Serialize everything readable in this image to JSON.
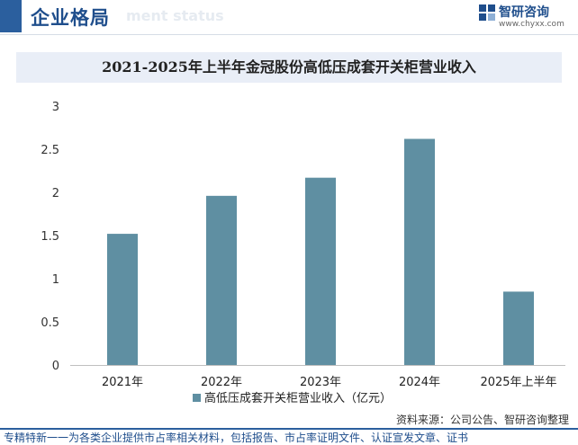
{
  "header": {
    "section_title": "企业格局",
    "section_subtitle": "ment status",
    "brand_name": "智研咨询",
    "brand_url": "www.chyxx.com"
  },
  "chart_data": {
    "type": "bar",
    "title": "2021-2025年上半年金冠股份高低压成套开关柜营业收入",
    "categories": [
      "2021年",
      "2022年",
      "2023年",
      "2024年",
      "2025年上半年"
    ],
    "series": [
      {
        "name": "高低压成套开关柜营业收入（亿元）",
        "values": [
          1.52,
          1.96,
          2.17,
          2.62,
          0.85
        ]
      }
    ],
    "ylim": [
      0,
      3
    ],
    "yticks": [
      "0",
      "0.5",
      "1",
      "1.5",
      "2",
      "2.5",
      "3"
    ],
    "ytick_values": [
      0,
      0.5,
      1,
      1.5,
      2,
      2.5,
      3
    ],
    "legend_position": "bottom",
    "grid": false,
    "bar_color": "#5f8fa2"
  },
  "footer": {
    "source": "资料来源：公司公告、智研咨询整理",
    "footnote": "专精特新一一为各类企业提供市占率相关材料，包括报告、市占率证明文件、认证宣发文章、证书"
  },
  "colors": {
    "brand_blue": "#1f4e8c",
    "accent_bar": "#2b5f9e"
  }
}
